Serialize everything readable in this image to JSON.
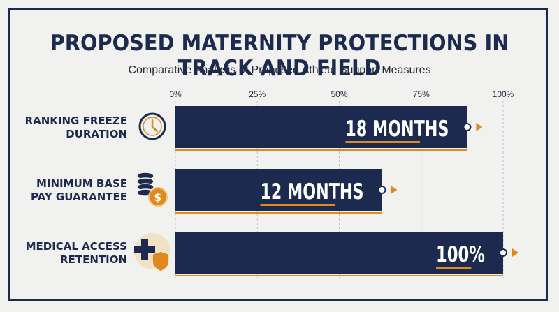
{
  "title": "PROPOSED MATERNITY PROTECTIONS IN TRACK AND FIELD",
  "subtitle": "Comparative Analysis of Proposed Athlete Support Measures",
  "colors": {
    "navy": "#1b2a4e",
    "accent": "#e08a1e",
    "background": "#f1f1ef"
  },
  "chart_data": {
    "type": "bar",
    "orientation": "horizontal",
    "title": "PROPOSED MATERNITY PROTECTIONS IN TRACK AND FIELD",
    "subtitle": "Comparative Analysis of Proposed Athlete Support Measures",
    "categories": [
      "Ranking Freeze Duration",
      "Minimum Base Pay Guarantee",
      "Medical Access Retention"
    ],
    "values": [
      89,
      63,
      100
    ],
    "value_labels": [
      "18 MONTHS",
      "12 MONTHS",
      "100%"
    ],
    "icons": [
      "clock-icon",
      "coin-stack-icon",
      "medical-shield-icon"
    ],
    "xlim": [
      0,
      100
    ],
    "xticks": [
      0,
      25,
      50,
      75,
      100
    ],
    "xtick_labels": [
      "0%",
      "25%",
      "50%",
      "75%",
      "100%"
    ],
    "grid": "vertical dashed",
    "legend": "none"
  }
}
